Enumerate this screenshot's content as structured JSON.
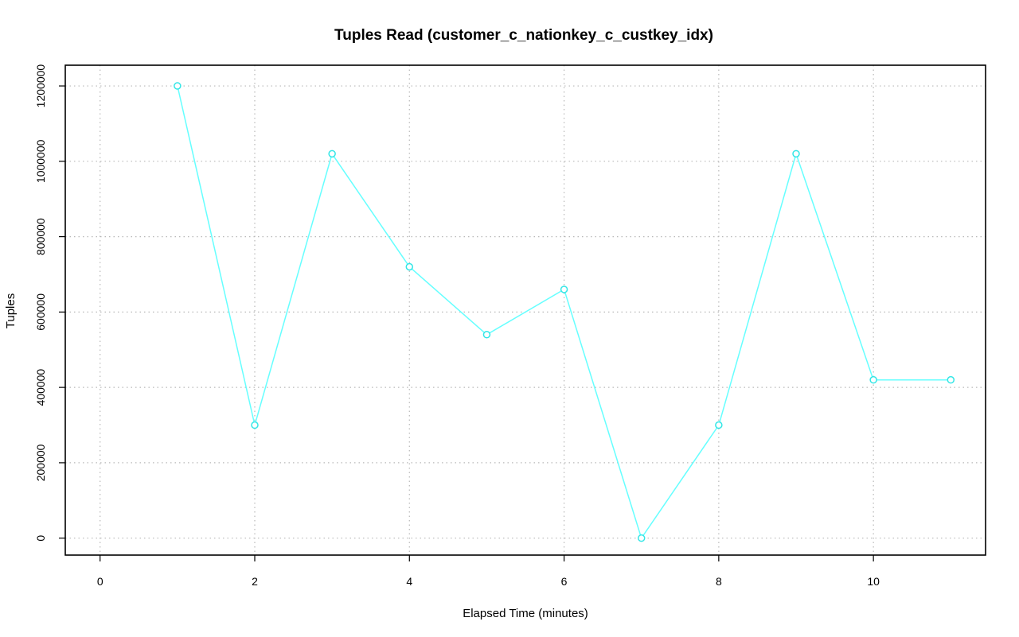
{
  "chart_data": {
    "type": "line",
    "title": "Tuples Read (customer_c_nationkey_c_custkey_idx)",
    "xlabel": "Elapsed Time (minutes)",
    "ylabel": "Tuples",
    "xlim": [
      -0.45,
      11.45
    ],
    "ylim": [
      -45000,
      1255000
    ],
    "x_ticks": [
      0,
      2,
      4,
      6,
      8,
      10
    ],
    "y_ticks": [
      0,
      200000,
      400000,
      600000,
      800000,
      1000000,
      1200000
    ],
    "grid": true,
    "series": [
      {
        "color": "#66ffff",
        "x": [
          1,
          2,
          3,
          4,
          5,
          6,
          7,
          8,
          9,
          10,
          11
        ],
        "y": [
          1200000,
          300000,
          1020000,
          720000,
          540000,
          660000,
          0,
          300000,
          1020000,
          420000,
          420000
        ]
      }
    ]
  }
}
